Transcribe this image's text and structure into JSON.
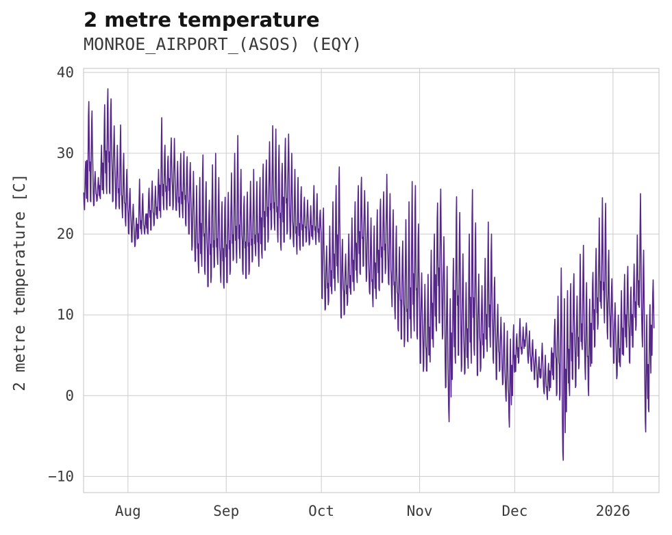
{
  "chart_data": {
    "type": "line",
    "title": "2 metre temperature",
    "subtitle": "MONROE_AIRPORT_(ASOS) (EQY)",
    "ylabel": "2 metre temperature [C]",
    "xlabel": "",
    "ylim": [
      -12,
      40.5
    ],
    "y_ticks": [
      -10,
      0,
      10,
      20,
      30,
      40
    ],
    "x_ticks": [
      {
        "label": "Aug",
        "day": 14
      },
      {
        "label": "Sep",
        "day": 45
      },
      {
        "label": "Oct",
        "day": 75
      },
      {
        "label": "Nov",
        "day": 106
      },
      {
        "label": "Dec",
        "day": 136
      },
      {
        "label": "2026",
        "day": 167
      }
    ],
    "x_domain_days": [
      0,
      181.5
    ],
    "grid": true,
    "legend": null,
    "line_color": "#542788",
    "background_color": "#ffffff",
    "grid_color": "#cccccc",
    "note": "daily_min_max holds estimated per-day [min,max] temperature (C) envelope of the hourly series; day 0 is the left edge of the plot, Aug 1 = day 14, Jan 1 2026 = day 167",
    "daily_min_max": [
      [
        23,
        29
      ],
      [
        24,
        36.5
      ],
      [
        24,
        36
      ],
      [
        23.5,
        28
      ],
      [
        24,
        27
      ],
      [
        24,
        31
      ],
      [
        25,
        36
      ],
      [
        25,
        38
      ],
      [
        25,
        37.5
      ],
      [
        24,
        34
      ],
      [
        23,
        31
      ],
      [
        22.5,
        33.5
      ],
      [
        22,
        30
      ],
      [
        21,
        28
      ],
      [
        20,
        26
      ],
      [
        19,
        24
      ],
      [
        18.4,
        22
      ],
      [
        19,
        26.8
      ],
      [
        20,
        25
      ],
      [
        20,
        22.5
      ],
      [
        20,
        26
      ],
      [
        20.5,
        27
      ],
      [
        21,
        26
      ],
      [
        21.5,
        28
      ],
      [
        22,
        34.4
      ],
      [
        23,
        31
      ],
      [
        23,
        30
      ],
      [
        23.5,
        32.5
      ],
      [
        23,
        32
      ],
      [
        22.5,
        29
      ],
      [
        22,
        30
      ],
      [
        22,
        30.2
      ],
      [
        21,
        30
      ],
      [
        20,
        29.5
      ],
      [
        18,
        28
      ],
      [
        16,
        26
      ],
      [
        15,
        27
      ],
      [
        16,
        29.8
      ],
      [
        15,
        27
      ],
      [
        13.5,
        25
      ],
      [
        14,
        29
      ],
      [
        15,
        30
      ],
      [
        16,
        27
      ],
      [
        14,
        24
      ],
      [
        13.3,
        25
      ],
      [
        14,
        26
      ],
      [
        15,
        28
      ],
      [
        16,
        30
      ],
      [
        16,
        32.2
      ],
      [
        17,
        28
      ],
      [
        15,
        25
      ],
      [
        14.5,
        26
      ],
      [
        15,
        27
      ],
      [
        16,
        28
      ],
      [
        17,
        26.5
      ],
      [
        16,
        27
      ],
      [
        17,
        29
      ],
      [
        18,
        30
      ],
      [
        19,
        32
      ],
      [
        20,
        33.4
      ],
      [
        20,
        33
      ],
      [
        19,
        31
      ],
      [
        18,
        29
      ],
      [
        19,
        32.8
      ],
      [
        20,
        33
      ],
      [
        19,
        30
      ],
      [
        18,
        28
      ],
      [
        17.5,
        27
      ],
      [
        18,
        26
      ],
      [
        18.5,
        25
      ],
      [
        19,
        24.5
      ],
      [
        18.5,
        23.5
      ],
      [
        19,
        26
      ],
      [
        18.7,
        25
      ],
      [
        19,
        23
      ],
      [
        12,
        24
      ],
      [
        10.6,
        19
      ],
      [
        11,
        21
      ],
      [
        12,
        24
      ],
      [
        13,
        26
      ],
      [
        14,
        28.4
      ],
      [
        9.6,
        20
      ],
      [
        10,
        18
      ],
      [
        11,
        20
      ],
      [
        12,
        22
      ],
      [
        13,
        24
      ],
      [
        14,
        26
      ],
      [
        15,
        27.8
      ],
      [
        16,
        26
      ],
      [
        14,
        24
      ],
      [
        12,
        22
      ],
      [
        11,
        21
      ],
      [
        12,
        23
      ],
      [
        13,
        25
      ],
      [
        14,
        26
      ],
      [
        15,
        27.5
      ],
      [
        13,
        25
      ],
      [
        11,
        23
      ],
      [
        9.5,
        21
      ],
      [
        8,
        19
      ],
      [
        7,
        20
      ],
      [
        6,
        22
      ],
      [
        5.5,
        24
      ],
      [
        7,
        26.5
      ],
      [
        8,
        26
      ],
      [
        7,
        22
      ],
      [
        4,
        16
      ],
      [
        3,
        14
      ],
      [
        2.2,
        15
      ],
      [
        4,
        18
      ],
      [
        6,
        20
      ],
      [
        8,
        24.6
      ],
      [
        9,
        26.8
      ],
      [
        7,
        20
      ],
      [
        0,
        16
      ],
      [
        -3.5,
        12
      ],
      [
        2,
        17
      ],
      [
        4,
        25.5
      ],
      [
        5,
        24
      ],
      [
        3,
        18
      ],
      [
        2,
        14
      ],
      [
        3,
        20
      ],
      [
        4,
        25.5
      ],
      [
        5,
        22
      ],
      [
        2.5,
        16
      ],
      [
        3,
        14
      ],
      [
        4,
        17
      ],
      [
        5,
        21.5
      ],
      [
        6,
        20
      ],
      [
        4,
        15
      ],
      [
        2,
        12
      ],
      [
        3,
        10
      ],
      [
        1,
        9
      ],
      [
        -1,
        8
      ],
      [
        -3.9,
        7
      ],
      [
        0,
        9
      ],
      [
        3,
        8
      ],
      [
        4,
        9.8
      ],
      [
        5,
        8.5
      ],
      [
        6,
        9
      ],
      [
        4,
        8
      ],
      [
        3,
        7
      ],
      [
        2,
        6
      ],
      [
        1,
        5
      ],
      [
        2,
        6.5
      ],
      [
        0,
        5
      ],
      [
        -0.5,
        4
      ],
      [
        1,
        6
      ],
      [
        2,
        10
      ],
      [
        0,
        13
      ],
      [
        -1,
        15.8
      ],
      [
        -9,
        12
      ],
      [
        -2,
        13
      ],
      [
        0,
        14
      ],
      [
        2,
        16
      ],
      [
        1,
        13
      ],
      [
        3,
        17.5
      ],
      [
        5,
        18.6
      ],
      [
        2,
        14
      ],
      [
        0,
        12
      ],
      [
        4,
        16
      ],
      [
        6,
        19
      ],
      [
        8,
        22
      ],
      [
        10,
        24.5
      ],
      [
        9,
        23.8
      ],
      [
        7,
        18
      ],
      [
        6,
        15
      ],
      [
        4,
        12
      ],
      [
        2,
        10
      ],
      [
        3,
        13
      ],
      [
        5,
        15
      ],
      [
        6,
        16
      ],
      [
        4,
        14
      ],
      [
        6,
        17
      ],
      [
        8,
        20
      ],
      [
        10,
        25
      ],
      [
        6,
        18
      ],
      [
        -4.5,
        10
      ],
      [
        -2,
        12
      ],
      [
        5,
        15
      ]
    ]
  }
}
